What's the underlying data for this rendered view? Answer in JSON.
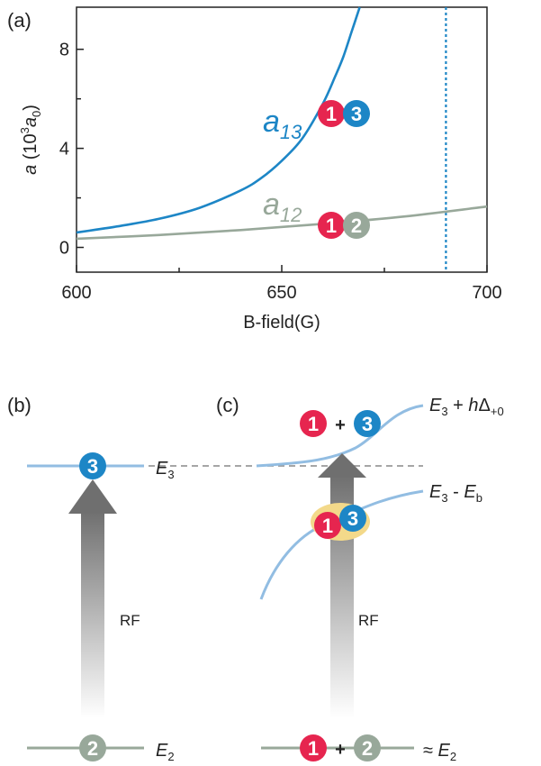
{
  "panels": {
    "a_label": "(a)",
    "b_label": "(b)",
    "c_label": "(c)"
  },
  "colors": {
    "red": "#e6254f",
    "blue": "#1d86c6",
    "gray": "#98a89a",
    "lightblue": "#92bde2",
    "yellow": "#f3d98a",
    "arrow_dark": "#6f6f6f",
    "dashed": "#9a9a9a"
  },
  "chart_data": {
    "type": "line",
    "xlabel": "B-field(G)",
    "ylabel_main": "a",
    "ylabel_rest": "(10",
    "ylabel_sup": "3",
    "ylabel_unit": "a",
    "ylabel_unit_sub": "0",
    "ylabel_close": ")",
    "xlim": [
      600,
      700
    ],
    "ylim": [
      -1.0,
      9.7
    ],
    "x_ticks": [
      600,
      650,
      700
    ],
    "y_ticks": [
      0,
      4,
      8
    ],
    "resonance_line": 690,
    "series": [
      {
        "name": "a13",
        "label_main": "a",
        "label_sub": "13",
        "color": "#1d86c6",
        "x": [
          600,
          610,
          620,
          630,
          640,
          645,
          650,
          655,
          660,
          663,
          665,
          667,
          669
        ],
        "y": [
          0.6,
          0.85,
          1.15,
          1.6,
          2.3,
          2.8,
          3.5,
          4.4,
          5.8,
          6.9,
          7.7,
          8.7,
          9.7
        ]
      },
      {
        "name": "a12",
        "label_main": "a",
        "label_sub": "12",
        "color": "#98a89a",
        "x": [
          600,
          620,
          640,
          660,
          680,
          700
        ],
        "y": [
          0.35,
          0.5,
          0.7,
          0.95,
          1.25,
          1.65
        ]
      }
    ],
    "markers": [
      {
        "near": "a13",
        "left": "1",
        "right": "3"
      },
      {
        "near": "a12",
        "left": "1",
        "right": "2"
      }
    ]
  },
  "panel_b": {
    "state_top": "3",
    "state_bottom": "2",
    "energy_top": "E",
    "energy_top_sub": "3",
    "energy_bottom": "E",
    "energy_bottom_sub": "2",
    "arrow_label": "RF"
  },
  "panel_c": {
    "top_left": "1",
    "top_plus": "+",
    "top_right": "3",
    "top_label_e": "E",
    "top_label_sub": "3",
    "top_label_plus": " + ",
    "top_label_h": "h",
    "top_label_delta": "Δ",
    "top_label_delta_sub": "+0",
    "mid_left": "1",
    "mid_right": "3",
    "mid_label_e": "E",
    "mid_label_sub": "3",
    "mid_label_minus": " - ",
    "mid_label_e2": "E",
    "mid_label_sub2": "b",
    "bottom_left": "1",
    "bottom_plus": "+",
    "bottom_right": "2",
    "bottom_label_approx": "≈ ",
    "bottom_label_e": "E",
    "bottom_label_sub": "2",
    "arrow_label": "RF"
  }
}
